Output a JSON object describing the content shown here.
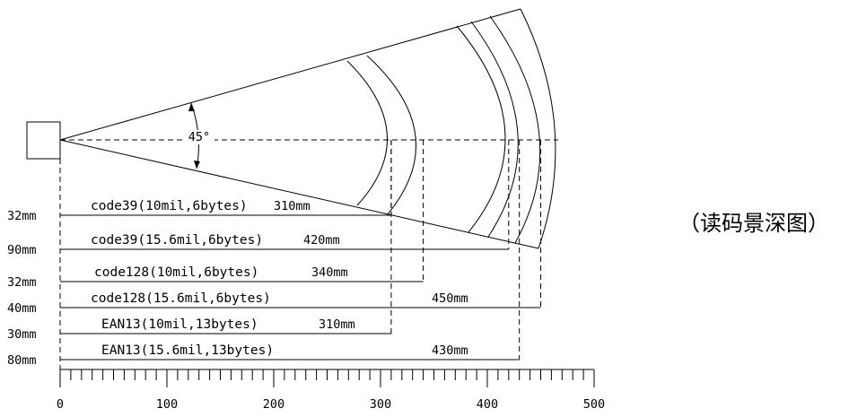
{
  "caption": "（读码景深图）",
  "angle_label": "45°",
  "axis_ticks": [
    "0",
    "100",
    "200",
    "300",
    "400",
    "500"
  ],
  "rows": [
    {
      "left_label": "32mm",
      "code_label": "code39(10mil,6bytes)",
      "dist_label": "310mm",
      "near_mm": 32,
      "far_mm": 310
    },
    {
      "left_label": "90mm",
      "code_label": "code39(15.6mil,6bytes)",
      "dist_label": "420mm",
      "near_mm": 90,
      "far_mm": 420
    },
    {
      "left_label": "32mm",
      "code_label": "code128(10mil,6bytes)",
      "dist_label": "340mm",
      "near_mm": 32,
      "far_mm": 340
    },
    {
      "left_label": "40mm",
      "code_label": "code128(15.6mil,6bytes)",
      "dist_label": "450mm",
      "near_mm": 40,
      "far_mm": 450
    },
    {
      "left_label": "30mm",
      "code_label": "EAN13(10mil,13bytes)",
      "dist_label": "310mm",
      "near_mm": 30,
      "far_mm": 310
    },
    {
      "left_label": "80mm",
      "code_label": "EAN13(15.6mil,13bytes)",
      "dist_label": "430mm",
      "near_mm": 80,
      "far_mm": 430
    }
  ]
}
